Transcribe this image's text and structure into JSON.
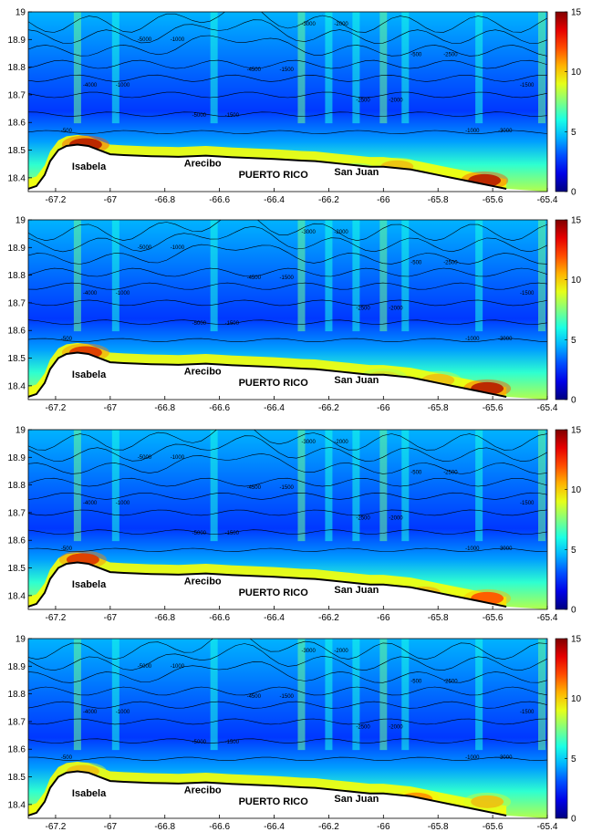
{
  "chart_data": [
    {
      "type": "heatmap",
      "panel": 1,
      "x_ticks": [
        "-67.2",
        "-67",
        "-66.8",
        "-66.6",
        "-66.4",
        "-66.2",
        "-66",
        "-65.8",
        "-65.6",
        "-65.4"
      ],
      "y_ticks": [
        "18.4",
        "18.5",
        "18.6",
        "18.7",
        "18.8",
        "18.9",
        "19"
      ],
      "xlim": [
        -67.3,
        -65.4
      ],
      "ylim": [
        18.35,
        19.0
      ],
      "colorbar": {
        "ticks": [
          "0",
          "5",
          "10",
          "15"
        ],
        "range": [
          0,
          15
        ],
        "colormap": "jet"
      },
      "place_labels": [
        "Isabela",
        "Arecibo",
        "PUERTO RICO",
        "San Juan"
      ],
      "contour_labels": [
        "-500",
        "-1000",
        "-1000",
        "-1500",
        "-1500",
        "-2000",
        "-2000",
        "-2500",
        "-3000",
        "-4000",
        "-5000",
        "-5000",
        "-4500",
        "-3000",
        "-2500",
        "-500",
        "-1000",
        "-1500"
      ],
      "hotspots": [
        {
          "lon": -67.09,
          "lat": 18.52,
          "value": 15
        },
        {
          "lon": -66.1,
          "lat": 18.42,
          "value": 9
        },
        {
          "lon": -65.95,
          "lat": 18.44,
          "value": 11
        },
        {
          "lon": -65.63,
          "lat": 18.39,
          "value": 15
        }
      ]
    },
    {
      "type": "heatmap",
      "panel": 2,
      "x_ticks": [
        "-67.2",
        "-67",
        "-66.8",
        "-66.6",
        "-66.4",
        "-66.2",
        "-66",
        "-65.8",
        "-65.6",
        "-65.4"
      ],
      "y_ticks": [
        "18.4",
        "18.5",
        "18.6",
        "18.7",
        "18.8",
        "18.9",
        "19"
      ],
      "xlim": [
        -67.3,
        -65.4
      ],
      "ylim": [
        18.35,
        19.0
      ],
      "colorbar": {
        "ticks": [
          "0",
          "5",
          "10",
          "15"
        ],
        "range": [
          0,
          15
        ],
        "colormap": "jet"
      },
      "place_labels": [
        "Isabela",
        "Arecibo",
        "PUERTO RICO",
        "San Juan"
      ],
      "contour_labels": [
        "-500",
        "-1000",
        "-1000",
        "-1500",
        "-1500",
        "-2000",
        "-2000",
        "-2500",
        "-3000",
        "-4000",
        "-5000",
        "-5000",
        "-4500",
        "-3000",
        "-2500",
        "-500",
        "-1000",
        "-1500"
      ],
      "hotspots": [
        {
          "lon": -67.09,
          "lat": 18.52,
          "value": 14
        },
        {
          "lon": -66.0,
          "lat": 18.43,
          "value": 10
        },
        {
          "lon": -65.8,
          "lat": 18.42,
          "value": 11
        },
        {
          "lon": -65.62,
          "lat": 18.39,
          "value": 15
        }
      ]
    },
    {
      "type": "heatmap",
      "panel": 3,
      "x_ticks": [
        "-67.2",
        "-67",
        "-66.8",
        "-66.6",
        "-66.4",
        "-66.2",
        "-66",
        "-65.8",
        "-65.6",
        "-65.4"
      ],
      "y_ticks": [
        "18.4",
        "18.5",
        "18.6",
        "18.7",
        "18.8",
        "18.9",
        "19"
      ],
      "xlim": [
        -67.3,
        -65.4
      ],
      "ylim": [
        18.35,
        19.0
      ],
      "colorbar": {
        "ticks": [
          "0",
          "5",
          "10",
          "15"
        ],
        "range": [
          0,
          15
        ],
        "colormap": "jet"
      },
      "place_labels": [
        "Isabela",
        "Arecibo",
        "PUERTO RICO",
        "San Juan"
      ],
      "contour_labels": [
        "-500",
        "-1000",
        "-1000",
        "-1500",
        "-1500",
        "-2000",
        "-2000",
        "-2500",
        "-3000",
        "-4000",
        "-5000",
        "-5000",
        "-4500",
        "-3000",
        "-2500",
        "-500",
        "-1000",
        "-1500"
      ],
      "hotspots": [
        {
          "lon": -67.1,
          "lat": 18.53,
          "value": 14
        },
        {
          "lon": -66.3,
          "lat": 18.42,
          "value": 9
        },
        {
          "lon": -65.85,
          "lat": 18.41,
          "value": 11
        },
        {
          "lon": -65.62,
          "lat": 18.39,
          "value": 13
        }
      ]
    },
    {
      "type": "heatmap",
      "panel": 4,
      "x_ticks": [
        "-67.2",
        "-67",
        "-66.8",
        "-66.6",
        "-66.4",
        "-66.2",
        "-66",
        "-65.8",
        "-65.6",
        "-65.4"
      ],
      "y_ticks": [
        "18.4",
        "18.5",
        "18.6",
        "18.7",
        "18.8",
        "18.9",
        "19"
      ],
      "xlim": [
        -67.3,
        -65.4
      ],
      "ylim": [
        18.35,
        19.0
      ],
      "colorbar": {
        "ticks": [
          "0",
          "5",
          "10",
          "15"
        ],
        "range": [
          0,
          15
        ],
        "colormap": "jet"
      },
      "place_labels": [
        "Isabela",
        "Arecibo",
        "PUERTO RICO",
        "San Juan"
      ],
      "contour_labels": [
        "-500",
        "-1000",
        "-1000",
        "-1500",
        "-1500",
        "-2000",
        "-2000",
        "-2500",
        "-3000",
        "-4000",
        "-5000",
        "-5000",
        "-4500",
        "-3000",
        "-2500",
        "-500",
        "-1000",
        "-1500"
      ],
      "hotspots": [
        {
          "lon": -67.1,
          "lat": 18.52,
          "value": 11
        },
        {
          "lon": -65.88,
          "lat": 18.42,
          "value": 12
        },
        {
          "lon": -65.62,
          "lat": 18.41,
          "value": 11
        }
      ]
    }
  ]
}
